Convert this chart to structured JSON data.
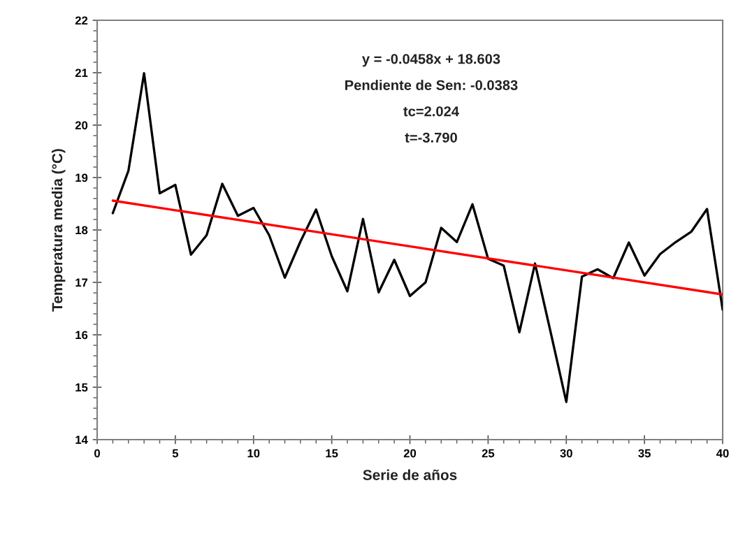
{
  "chart_data": {
    "type": "line",
    "xlabel": "Serie de años",
    "ylabel": "Temperatura media (°C)",
    "annotations": [
      "y = -0.0458x + 18.603",
      "Pendiente de Sen: -0.0383",
      "tc=2.024",
      "t=-3.790"
    ],
    "x": [
      1,
      2,
      3,
      4,
      5,
      6,
      7,
      8,
      9,
      10,
      11,
      12,
      13,
      14,
      15,
      16,
      17,
      18,
      19,
      20,
      21,
      22,
      23,
      24,
      25,
      26,
      27,
      28,
      29,
      30,
      31,
      32,
      33,
      34,
      35,
      36,
      37,
      38,
      39,
      40
    ],
    "series": [
      {
        "color": "#000000",
        "values": [
          18.32,
          19.13,
          20.99,
          18.7,
          18.86,
          17.53,
          17.9,
          18.88,
          18.27,
          18.42,
          17.9,
          17.09,
          17.78,
          18.39,
          17.5,
          16.83,
          18.21,
          16.81,
          17.43,
          16.74,
          17.0,
          18.04,
          17.77,
          18.49,
          17.45,
          17.32,
          16.05,
          17.36,
          16.05,
          14.72,
          17.11,
          17.25,
          17.08,
          17.76,
          17.13,
          17.54,
          17.77,
          17.97,
          18.4,
          16.48
        ]
      },
      {
        "type": "line",
        "x": [
          1,
          40
        ],
        "color": "#ff0000",
        "values": [
          18.56,
          16.77
        ]
      }
    ],
    "xlim": [
      0,
      40
    ],
    "ylim": [
      14,
      22
    ],
    "xticks": [
      0,
      5,
      10,
      15,
      20,
      25,
      30,
      35,
      40
    ],
    "yticks": [
      14,
      15,
      16,
      17,
      18,
      19,
      20,
      21,
      22
    ],
    "grid": false,
    "marker": "none",
    "line_style": "solid"
  }
}
